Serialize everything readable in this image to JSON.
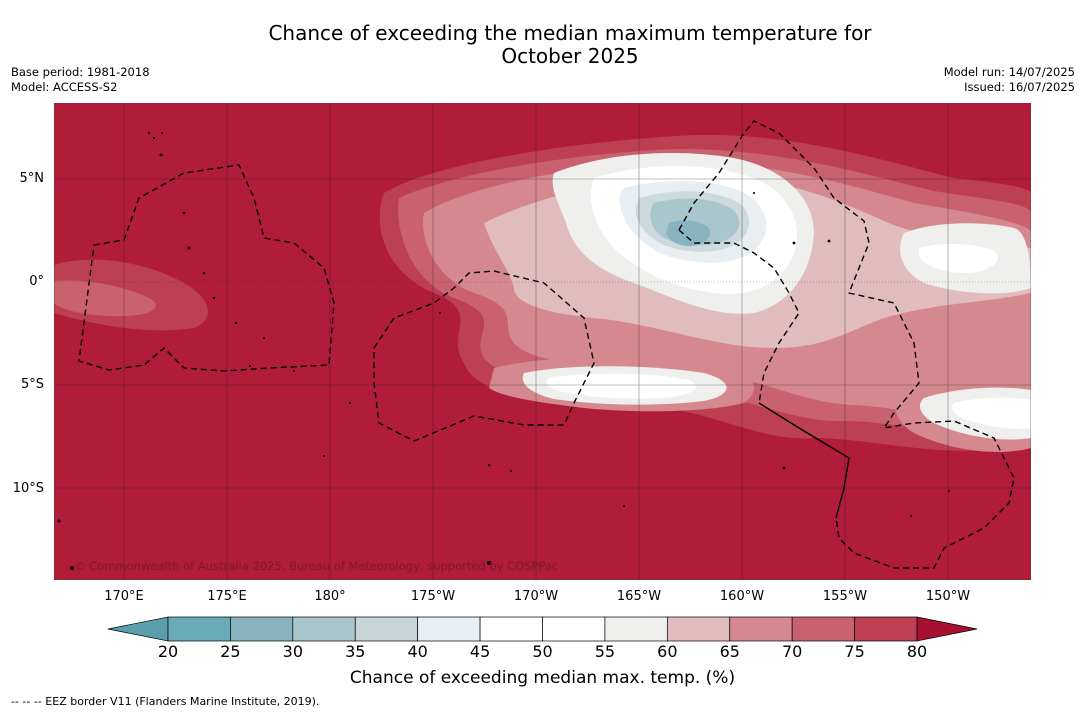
{
  "title_line1": "Chance of exceeding the median maximum temperature for",
  "title_line2": "October 2025",
  "meta_left": {
    "base_period": "Base period: 1981-2018",
    "model": "Model: ACCESS-S2"
  },
  "meta_right": {
    "model_run": "Model run: 14/07/2025",
    "issued": "Issued: 16/07/2025"
  },
  "map": {
    "lat_labels": [
      "5°N",
      "0°",
      "5°S",
      "10°S"
    ],
    "lon_labels": [
      "170°E",
      "175°E",
      "180°",
      "175°W",
      "170°W",
      "165°W",
      "160°W",
      "155°W",
      "150°W"
    ],
    "copyright": "© Commonwealth of Australia 2025, Bureau of Meteorology, supported by COSPPac",
    "colors": {
      "background": "#b11c38",
      "c75": "#bd3f52",
      "c70": "#c9616f",
      "c65": "#d5898f",
      "c60": "#e1bcbf",
      "c55": "#efefed",
      "c50": "#ffffff",
      "c45": "#e8eef2",
      "c40": "#ccd9dd",
      "c35": "#a8c6cc",
      "c30": "#87b4c0"
    }
  },
  "colorbar": {
    "ticks": [
      "20",
      "25",
      "30",
      "35",
      "40",
      "45",
      "50",
      "55",
      "60",
      "65",
      "70",
      "75",
      "80"
    ],
    "colors": [
      "#6aaab6",
      "#87b2c0",
      "#a8c6cc",
      "#c9d6d8",
      "#e8eef2",
      "#ffffff",
      "#ffffff",
      "#efefed",
      "#e1bcbf",
      "#d5898f",
      "#c9616f",
      "#bd3f52"
    ],
    "under_color": "#5a9eab",
    "over_color": "#a8102f",
    "label": "Chance of exceeding median max. temp. (%)"
  },
  "footer": {
    "eez": "--  --  -- EEZ border V11 (Flanders Marine Institute, 2019)."
  }
}
